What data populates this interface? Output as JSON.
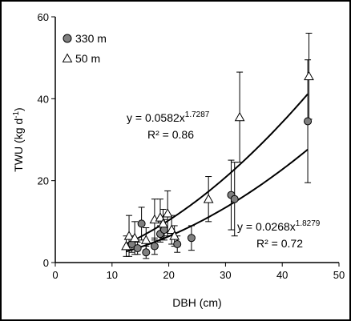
{
  "chart_data": {
    "type": "scatter",
    "xlabel": "DBH (cm)",
    "ylabel": "TWU (kg d",
    "ylabel_sup": "-1",
    "ylabel_tail": ")",
    "xlim": [
      0,
      50
    ],
    "ylim": [
      0,
      60
    ],
    "xticks": [
      "0",
      "10",
      "20",
      "30",
      "40",
      "50"
    ],
    "yticks": [
      "0",
      "20",
      "40",
      "60"
    ],
    "grid": false,
    "legend_position": "top-left",
    "series": [
      {
        "name": "330 m",
        "marker": "circle",
        "color": "#808080",
        "points": [
          {
            "x": 13.5,
            "y": 4.5,
            "err": 2.0
          },
          {
            "x": 14.5,
            "y": 3.5,
            "err": 1.5
          },
          {
            "x": 15.2,
            "y": 9.5,
            "err": 4.0
          },
          {
            "x": 16.0,
            "y": 2.5,
            "err": 1.5
          },
          {
            "x": 17.5,
            "y": 4.0,
            "err": 2.0
          },
          {
            "x": 18.5,
            "y": 7.0,
            "err": 2.0
          },
          {
            "x": 19.2,
            "y": 8.0,
            "err": 2.5
          },
          {
            "x": 21.5,
            "y": 4.5,
            "err": 2.0
          },
          {
            "x": 24.0,
            "y": 6.0,
            "err": 3.0
          },
          {
            "x": 31.0,
            "y": 16.5,
            "err": 8.5
          },
          {
            "x": 31.6,
            "y": 15.5,
            "err": 9.0
          },
          {
            "x": 44.5,
            "y": 34.5,
            "err": 15.0
          }
        ],
        "fit": {
          "a": 0.0268,
          "b": 1.8279,
          "r2": 0.72,
          "x_range": [
            12.5,
            44.5
          ]
        }
      },
      {
        "name": "50 m",
        "marker": "triangle",
        "color": "#ffffff",
        "points": [
          {
            "x": 12.5,
            "y": 4.0,
            "err": 2.5
          },
          {
            "x": 13.0,
            "y": 6.5,
            "err": 5.0
          },
          {
            "x": 14.0,
            "y": 6.0,
            "err": 4.0
          },
          {
            "x": 16.0,
            "y": 5.5,
            "err": 3.0
          },
          {
            "x": 17.5,
            "y": 10.5,
            "err": 5.0
          },
          {
            "x": 18.5,
            "y": 11.0,
            "err": 4.5
          },
          {
            "x": 19.0,
            "y": 9.5,
            "err": 3.5
          },
          {
            "x": 19.8,
            "y": 12.0,
            "err": 5.5
          },
          {
            "x": 20.5,
            "y": 8.0,
            "err": 3.5
          },
          {
            "x": 21.0,
            "y": 6.5,
            "err": 2.5
          },
          {
            "x": 27.0,
            "y": 15.5,
            "err": 5.5
          },
          {
            "x": 32.5,
            "y": 35.5,
            "err": 11.0
          },
          {
            "x": 44.7,
            "y": 45.5,
            "err": 10.5
          }
        ],
        "fit": {
          "a": 0.0582,
          "b": 1.7287,
          "r2": 0.86,
          "x_range": [
            12.5,
            44.5
          ]
        }
      }
    ],
    "annotations": {
      "fit_50": {
        "eq_prefix": "y = 0.0582x",
        "eq_exp": "1.7287",
        "r2": "R² = 0.86"
      },
      "fit_330": {
        "eq_prefix": "y = 0.0268x",
        "eq_exp": "1.8279",
        "r2": "R² = 0.72"
      }
    }
  }
}
